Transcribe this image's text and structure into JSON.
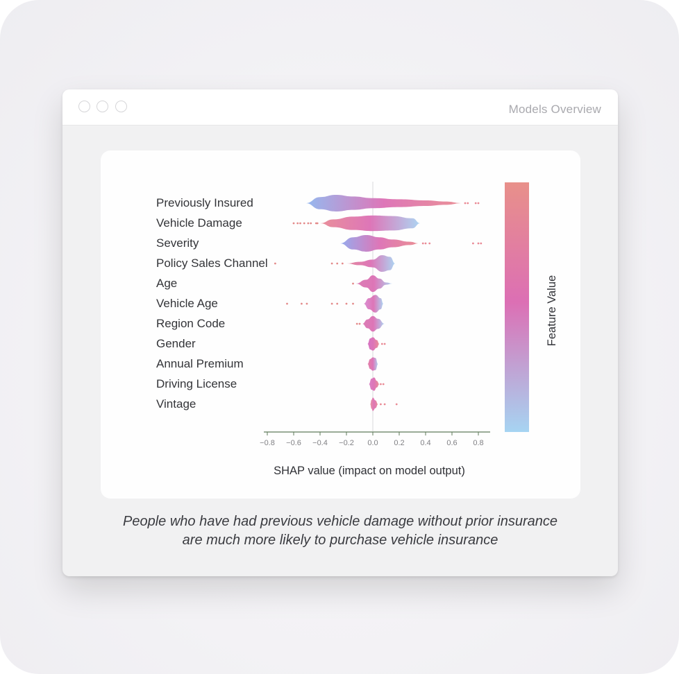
{
  "window": {
    "title": "Models Overview"
  },
  "chart_data": {
    "type": "violin",
    "xlabel": "SHAP value (impact on model output)",
    "xlim": [
      -0.83,
      0.9
    ],
    "xticks": [
      -0.8,
      -0.6,
      -0.4,
      -0.2,
      0.0,
      0.2,
      0.4,
      0.6,
      0.8
    ],
    "xtick_labels": [
      "−0.8",
      "−0.6",
      "−0.4",
      "−0.2",
      "0.0",
      "0.2",
      "0.4",
      "0.6",
      "0.8"
    ],
    "colorbar": {
      "label": "Feature Value",
      "high_color": "#e8908a",
      "mid_color": "#dc6fb4",
      "low_color": "#a6d4f2"
    },
    "features": [
      {
        "name": "Previously Insured",
        "range": [
          -0.51,
          0.68
        ],
        "shape": [
          [
            -0.51,
            0.0
          ],
          [
            -0.4,
            0.55
          ],
          [
            -0.28,
            0.75
          ],
          [
            -0.15,
            0.6
          ],
          [
            0.0,
            0.45
          ],
          [
            0.2,
            0.35
          ],
          [
            0.4,
            0.25
          ],
          [
            0.55,
            0.15
          ],
          [
            0.68,
            0.0
          ]
        ],
        "color_low": "#8fb6ef",
        "color_high": "#e98c92",
        "low_side": "left",
        "outliers": [
          0.7,
          0.72,
          0.78,
          0.8
        ]
      },
      {
        "name": "Vehicle Damage",
        "range": [
          -0.4,
          0.36
        ],
        "shape": [
          [
            -0.4,
            0.0
          ],
          [
            -0.3,
            0.35
          ],
          [
            -0.15,
            0.6
          ],
          [
            0.0,
            0.7
          ],
          [
            0.15,
            0.65
          ],
          [
            0.3,
            0.45
          ],
          [
            0.36,
            0.0
          ]
        ],
        "color_low": "#e88a95",
        "color_high": "#a8d3f2",
        "low_side": "left",
        "outliers": [
          -0.6,
          -0.57,
          -0.55,
          -0.52,
          -0.49,
          -0.47,
          -0.43,
          -0.42
        ]
      },
      {
        "name": "Severity",
        "range": [
          -0.25,
          0.35
        ],
        "shape": [
          [
            -0.25,
            0.0
          ],
          [
            -0.15,
            0.55
          ],
          [
            -0.05,
            0.75
          ],
          [
            0.05,
            0.55
          ],
          [
            0.15,
            0.35
          ],
          [
            0.28,
            0.15
          ],
          [
            0.35,
            0.0
          ]
        ],
        "color_low": "#8fa8ee",
        "color_high": "#e98a8f",
        "low_side": "left",
        "outliers": [
          0.38,
          0.4,
          0.43,
          0.76,
          0.8,
          0.82
        ]
      },
      {
        "name": "Policy Sales Channel",
        "range": [
          -0.2,
          0.17
        ],
        "shape": [
          [
            -0.2,
            0.0
          ],
          [
            -0.1,
            0.15
          ],
          [
            0.0,
            0.35
          ],
          [
            0.07,
            0.75
          ],
          [
            0.13,
            0.6
          ],
          [
            0.17,
            0.0
          ]
        ],
        "color_low": "#e2849a",
        "color_high": "#a8d3f2",
        "low_side": "left",
        "outliers": [
          -0.74,
          -0.31,
          -0.27,
          -0.23
        ]
      },
      {
        "name": "Age",
        "range": [
          -0.13,
          0.15
        ],
        "shape": [
          [
            -0.13,
            0.0
          ],
          [
            -0.05,
            0.35
          ],
          [
            0.0,
            0.75
          ],
          [
            0.05,
            0.45
          ],
          [
            0.1,
            0.1
          ],
          [
            0.15,
            0.0
          ]
        ],
        "color_low": "#d976b0",
        "color_high": "#a8d3f2",
        "low_side": "left",
        "outliers": [
          -0.15
        ]
      },
      {
        "name": "Vehicle Age",
        "range": [
          -0.07,
          0.08
        ],
        "shape": [
          [
            -0.07,
            0.0
          ],
          [
            -0.03,
            0.5
          ],
          [
            0.02,
            0.8
          ],
          [
            0.06,
            0.5
          ],
          [
            0.08,
            0.0
          ]
        ],
        "color_low": "#d88ad0",
        "color_high": "#a8d3f2",
        "low_side": "left",
        "outliers": [
          -0.65,
          -0.54,
          -0.5,
          -0.31,
          -0.27,
          -0.2,
          -0.15
        ]
      },
      {
        "name": "Region Code",
        "range": [
          -0.08,
          0.09
        ],
        "shape": [
          [
            -0.08,
            0.0
          ],
          [
            -0.04,
            0.4
          ],
          [
            0.0,
            0.7
          ],
          [
            0.04,
            0.45
          ],
          [
            0.09,
            0.0
          ]
        ],
        "color_low": "#d976b0",
        "color_high": "#a8d3f2",
        "low_side": "left",
        "outliers": [
          -0.12,
          -0.1
        ]
      },
      {
        "name": "Gender",
        "range": [
          -0.04,
          0.05
        ],
        "shape": [
          [
            -0.04,
            0.0
          ],
          [
            -0.02,
            0.5
          ],
          [
            0.0,
            0.6
          ],
          [
            0.03,
            0.35
          ],
          [
            0.05,
            0.0
          ]
        ],
        "color_low": "#d36bbf",
        "color_high": "#e98a8f",
        "low_side": "left",
        "outliers": [
          0.07,
          0.09
        ]
      },
      {
        "name": "Annual Premium",
        "range": [
          -0.04,
          0.04
        ],
        "shape": [
          [
            -0.04,
            0.0
          ],
          [
            -0.02,
            0.45
          ],
          [
            0.0,
            0.6
          ],
          [
            0.02,
            0.55
          ],
          [
            0.04,
            0.0
          ]
        ],
        "color_low": "#e17aa3",
        "color_high": "#a8d3f2",
        "low_side": "left",
        "outliers": []
      },
      {
        "name": "Driving License",
        "range": [
          -0.03,
          0.05
        ],
        "shape": [
          [
            -0.03,
            0.0
          ],
          [
            -0.01,
            0.5
          ],
          [
            0.01,
            0.6
          ],
          [
            0.03,
            0.3
          ],
          [
            0.05,
            0.0
          ]
        ],
        "color_low": "#d87ac3",
        "color_high": "#e98a8f",
        "low_side": "left",
        "outliers": [
          0.06,
          0.08
        ]
      },
      {
        "name": "Vintage",
        "range": [
          -0.02,
          0.04
        ],
        "shape": [
          [
            -0.02,
            0.0
          ],
          [
            -0.01,
            0.4
          ],
          [
            0.0,
            0.6
          ],
          [
            0.02,
            0.35
          ],
          [
            0.04,
            0.0
          ]
        ],
        "color_low": "#e68ca0",
        "color_high": "#e98a8f",
        "low_side": "left",
        "outliers": [
          0.06,
          0.09,
          0.18
        ]
      }
    ]
  },
  "caption": {
    "line1": "People who have had previous vehicle damage without prior insurance",
    "line2": "are much more likely to purchase vehicle insurance"
  }
}
